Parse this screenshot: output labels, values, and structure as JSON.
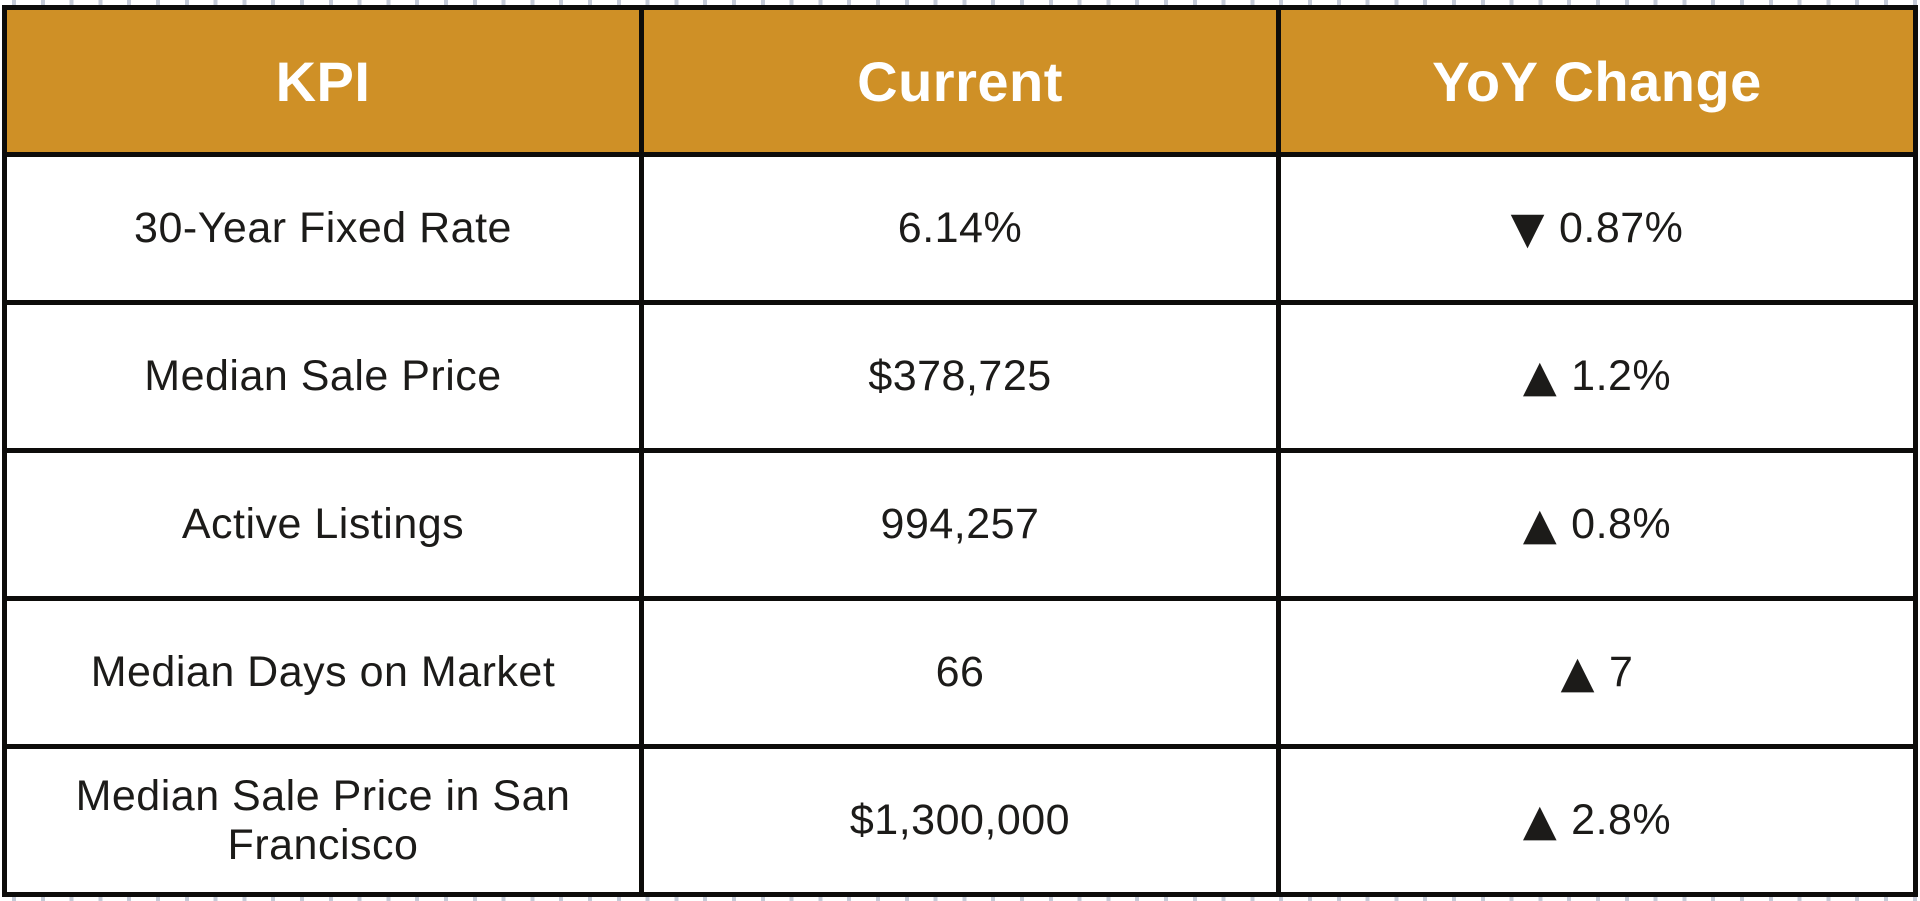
{
  "table": {
    "columns": [
      "KPI",
      "Current",
      "YoY Change"
    ],
    "rows": [
      {
        "kpi": "30-Year Fixed Rate",
        "current": "6.14%",
        "direction": "down",
        "arrow": "▼",
        "yoy": "0.87%"
      },
      {
        "kpi": "Median Sale Price",
        "current": "$378,725",
        "direction": "up",
        "arrow": "▲",
        "yoy": "1.2%"
      },
      {
        "kpi": "Active Listings",
        "current": "994,257",
        "direction": "up",
        "arrow": "▲",
        "yoy": "0.8%"
      },
      {
        "kpi": "Median Days on Market",
        "current": "66",
        "direction": "up",
        "arrow": "▲",
        "yoy": "7"
      },
      {
        "kpi": "Median Sale Price in San Francisco",
        "current": "$1,300,000",
        "direction": "up",
        "arrow": "▲",
        "yoy": "2.8%"
      }
    ]
  },
  "colors": {
    "header_bg": "#CF9026",
    "header_text": "#FFFFFF",
    "grid_border": "#0D0C0A",
    "cell_bg": "#FFFFFF",
    "body_text": "#1C1B19",
    "ruler_tick": "#C4CAD7"
  },
  "chart_data": {
    "type": "table",
    "title": "",
    "columns": [
      "KPI",
      "Current",
      "YoY Change"
    ],
    "rows": [
      [
        "30-Year Fixed Rate",
        "6.14%",
        "▼ 0.87%"
      ],
      [
        "Median Sale Price",
        "$378,725",
        "▲ 1.2%"
      ],
      [
        "Active Listings",
        "994,257",
        "▲ 0.8%"
      ],
      [
        "Median Days on Market",
        "66",
        "▲ 7"
      ],
      [
        "Median Sale Price in San Francisco",
        "$1,300,000",
        "▲ 2.8%"
      ]
    ]
  }
}
